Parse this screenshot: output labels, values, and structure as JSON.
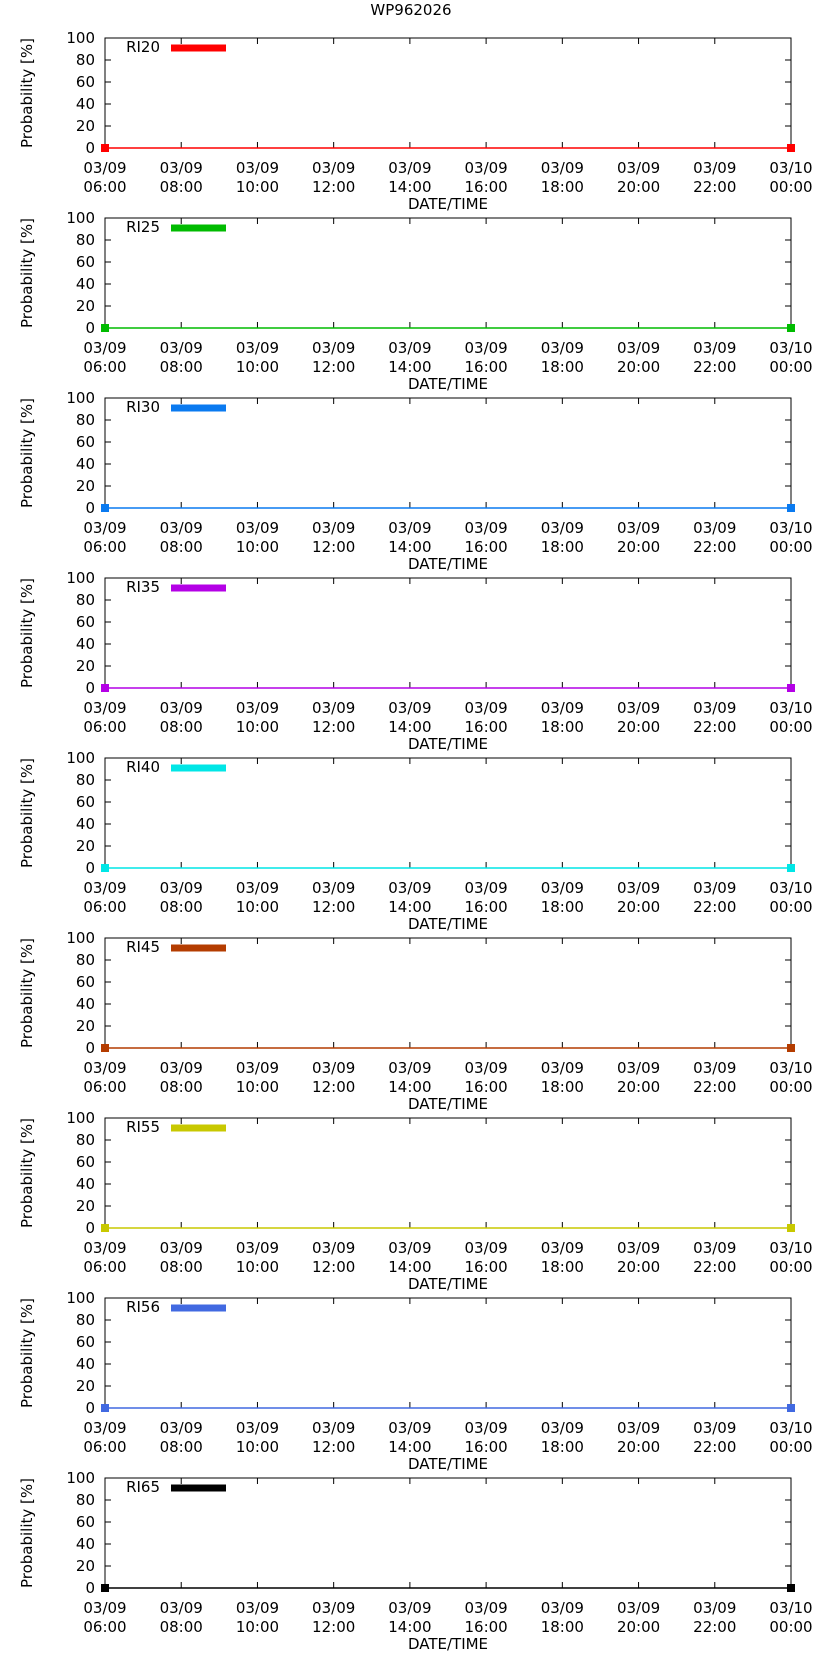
{
  "title": "WP962026",
  "chart_data": [
    {
      "type": "line",
      "series_name": "RI20",
      "color": "#ff0000",
      "x": [
        "03/09 06:00",
        "03/10 00:00"
      ],
      "values": [
        0,
        0
      ],
      "ylim": [
        0,
        100
      ]
    },
    {
      "type": "line",
      "series_name": "RI25",
      "color": "#00bb00",
      "x": [
        "03/09 06:00",
        "03/10 00:00"
      ],
      "values": [
        0,
        0
      ],
      "ylim": [
        0,
        100
      ]
    },
    {
      "type": "line",
      "series_name": "RI30",
      "color": "#0a7af0",
      "x": [
        "03/09 06:00",
        "03/10 00:00"
      ],
      "values": [
        0,
        0
      ],
      "ylim": [
        0,
        100
      ]
    },
    {
      "type": "line",
      "series_name": "RI35",
      "color": "#b400e6",
      "x": [
        "03/09 06:00",
        "03/10 00:00"
      ],
      "values": [
        0,
        0
      ],
      "ylim": [
        0,
        100
      ]
    },
    {
      "type": "line",
      "series_name": "RI40",
      "color": "#00e6e6",
      "x": [
        "03/09 06:00",
        "03/10 00:00"
      ],
      "values": [
        0,
        0
      ],
      "ylim": [
        0,
        100
      ]
    },
    {
      "type": "line",
      "series_name": "RI45",
      "color": "#b43c00",
      "x": [
        "03/09 06:00",
        "03/10 00:00"
      ],
      "values": [
        0,
        0
      ],
      "ylim": [
        0,
        100
      ]
    },
    {
      "type": "line",
      "series_name": "RI55",
      "color": "#c8c800",
      "x": [
        "03/09 06:00",
        "03/10 00:00"
      ],
      "values": [
        0,
        0
      ],
      "ylim": [
        0,
        100
      ]
    },
    {
      "type": "line",
      "series_name": "RI56",
      "color": "#4169e1",
      "x": [
        "03/09 06:00",
        "03/10 00:00"
      ],
      "values": [
        0,
        0
      ],
      "ylim": [
        0,
        100
      ]
    },
    {
      "type": "line",
      "series_name": "RI65",
      "color": "#000000",
      "x": [
        "03/09 06:00",
        "03/10 00:00"
      ],
      "values": [
        0,
        0
      ],
      "ylim": [
        0,
        100
      ]
    }
  ],
  "axes": {
    "ylabel": "Probability [%]",
    "xlabel": "DATE/TIME",
    "yticks": [
      "0",
      "20",
      "40",
      "60",
      "80",
      "100"
    ],
    "xticks": [
      {
        "date": "03/09",
        "time": "06:00"
      },
      {
        "date": "03/09",
        "time": "08:00"
      },
      {
        "date": "03/09",
        "time": "10:00"
      },
      {
        "date": "03/09",
        "time": "12:00"
      },
      {
        "date": "03/09",
        "time": "14:00"
      },
      {
        "date": "03/09",
        "time": "16:00"
      },
      {
        "date": "03/09",
        "time": "18:00"
      },
      {
        "date": "03/09",
        "time": "20:00"
      },
      {
        "date": "03/09",
        "time": "22:00"
      },
      {
        "date": "03/10",
        "time": "00:00"
      }
    ]
  }
}
